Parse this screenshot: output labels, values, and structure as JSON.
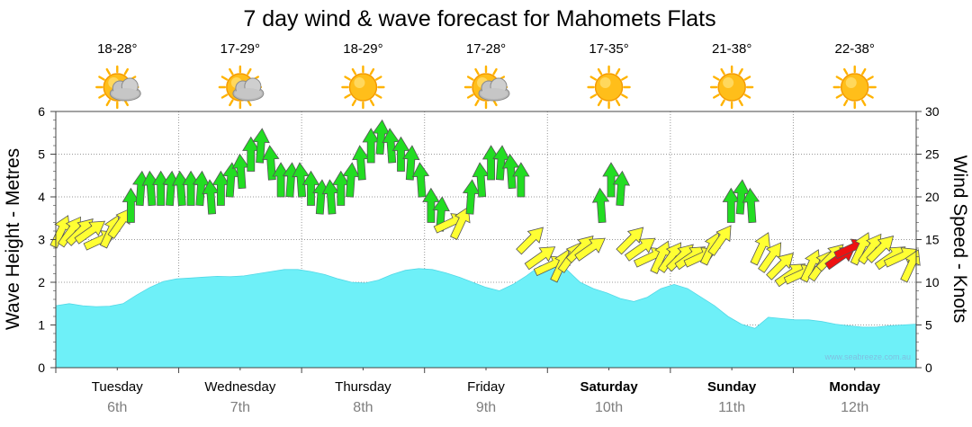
{
  "chart_data": {
    "type": "area",
    "title": "7 day wind & wave forecast for Mahomets Flats",
    "ylabel_left": "Wave Height - Metres",
    "ylabel_right": "Wind Speed - Knots",
    "ylim_left": [
      0,
      6
    ],
    "ylim_right": [
      0,
      30
    ],
    "yticks_left": [
      "0",
      "1",
      "2",
      "3",
      "4",
      "5",
      "6"
    ],
    "yticks_right": [
      "0",
      "5",
      "10",
      "15",
      "20",
      "25",
      "30"
    ],
    "grid": true,
    "watermark": "www.seabreeze.com.au",
    "days": [
      {
        "name": "Tuesday",
        "date": "6th",
        "temp": "18-28°",
        "icon": "partly-cloudy-icon",
        "bold": false
      },
      {
        "name": "Wednesday",
        "date": "7th",
        "temp": "17-29°",
        "icon": "partly-cloudy-icon",
        "bold": false
      },
      {
        "name": "Thursday",
        "date": "8th",
        "temp": "18-29°",
        "icon": "sunny-icon",
        "bold": false
      },
      {
        "name": "Friday",
        "date": "9th",
        "temp": "17-28°",
        "icon": "partly-cloudy-icon",
        "bold": false
      },
      {
        "name": "Saturday",
        "date": "10th",
        "temp": "17-35°",
        "icon": "sunny-icon",
        "bold": true
      },
      {
        "name": "Sunday",
        "date": "11th",
        "temp": "21-38°",
        "icon": "sunny-icon",
        "bold": true
      },
      {
        "name": "Monday",
        "date": "12th",
        "temp": "22-38°",
        "icon": "sunny-icon",
        "bold": true
      }
    ],
    "wave_series": {
      "name": "Wave Height",
      "color": "#6ef0f8",
      "values": [
        1.45,
        1.5,
        1.45,
        1.43,
        1.44,
        1.5,
        1.7,
        1.88,
        2.02,
        2.08,
        2.1,
        2.12,
        2.14,
        2.13,
        2.15,
        2.2,
        2.25,
        2.3,
        2.3,
        2.25,
        2.18,
        2.08,
        2.0,
        1.98,
        2.05,
        2.18,
        2.28,
        2.32,
        2.3,
        2.22,
        2.12,
        2.0,
        1.88,
        1.8,
        1.95,
        2.15,
        2.38,
        2.45,
        2.3,
        2.0,
        1.85,
        1.75,
        1.62,
        1.55,
        1.65,
        1.85,
        1.95,
        1.85,
        1.65,
        1.45,
        1.2,
        1.02,
        0.92,
        1.18,
        1.15,
        1.12,
        1.12,
        1.08,
        1.02,
        0.98,
        0.95,
        0.95,
        0.98,
        1.0,
        1.02
      ]
    },
    "wind_series": {
      "name": "Wind Speed",
      "colors": {
        "light": "#ffff33",
        "moderate": "#22dd22",
        "strong": "#ee1111"
      },
      "values": [
        16,
        16,
        16,
        16,
        15,
        16,
        17,
        19,
        21,
        21,
        21,
        21,
        21,
        21,
        21,
        20,
        21,
        22,
        23,
        25,
        26,
        24,
        22,
        22,
        22,
        21,
        20,
        20,
        21,
        22,
        24,
        26,
        27,
        26,
        25,
        24,
        22,
        19,
        18,
        17,
        17,
        20,
        22,
        24,
        24,
        23,
        22,
        15,
        13,
        12,
        12,
        13,
        14,
        14,
        19,
        22,
        21,
        15,
        14,
        13,
        13,
        13,
        13,
        13,
        13,
        14,
        15,
        19,
        20,
        19,
        14,
        13,
        12,
        11,
        11,
        12,
        12,
        13,
        13,
        14,
        14,
        14,
        14,
        13,
        13,
        12
      ]
    }
  }
}
